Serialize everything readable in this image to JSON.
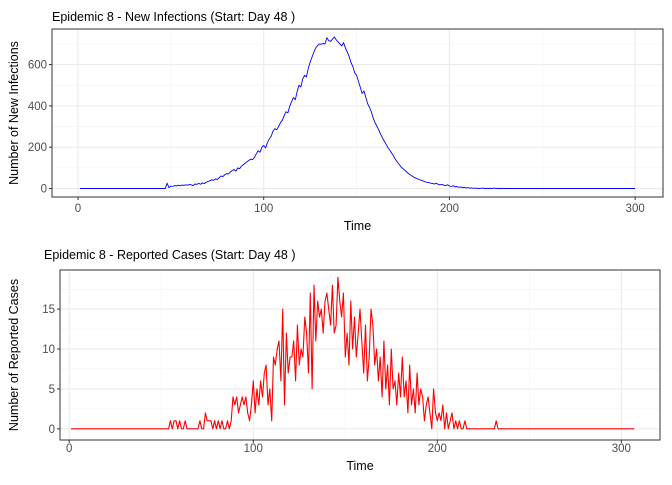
{
  "chart_data": [
    {
      "type": "line",
      "title": "Epidemic 8 - New Infections (Start: Day 48 )",
      "xlabel": "Time",
      "ylabel": "Number of New Infections",
      "xlim": [
        -14,
        315
      ],
      "ylim": [
        -41,
        772
      ],
      "xticks": [
        0,
        100,
        200,
        300
      ],
      "yticks": [
        0,
        200,
        400,
        600
      ],
      "grid": true,
      "color": "#0000ff",
      "x_start": 1,
      "values": [
        0,
        0,
        0,
        0,
        0,
        0,
        0,
        0,
        0,
        0,
        0,
        0,
        0,
        0,
        0,
        0,
        0,
        0,
        0,
        0,
        0,
        0,
        0,
        0,
        0,
        0,
        0,
        0,
        0,
        0,
        0,
        0,
        0,
        0,
        0,
        0,
        0,
        0,
        0,
        0,
        0,
        0,
        0,
        0,
        0,
        0,
        0,
        26,
        4,
        12,
        10,
        14,
        12,
        16,
        13,
        17,
        15,
        18,
        16,
        19,
        18,
        14,
        22,
        20,
        25,
        21,
        27,
        24,
        30,
        34,
        38,
        42,
        40,
        46,
        44,
        52,
        60,
        58,
        66,
        72,
        70,
        80,
        86,
        92,
        84,
        100,
        96,
        108,
        116,
        122,
        130,
        136,
        142,
        140,
        150,
        168,
        182,
        176,
        200,
        208,
        196,
        222,
        240,
        252,
        278,
        290,
        284,
        300,
        318,
        330,
        352,
        372,
        366,
        398,
        420,
        440,
        430,
        468,
        500,
        492,
        530,
        548,
        540,
        582,
        610,
        636,
        660,
        680,
        692,
        700,
        698,
        702,
        700,
        730,
        716,
        712,
        722,
        734,
        720,
        710,
        700,
        690,
        706,
        680,
        660,
        640,
        610,
        590,
        560,
        548,
        520,
        490,
        460,
        472,
        440,
        410,
        392,
        370,
        340,
        318,
        300,
        282,
        262,
        244,
        228,
        212,
        196,
        184,
        170,
        156,
        140,
        128,
        116,
        104,
        96,
        88,
        80,
        72,
        66,
        60,
        54,
        50,
        46,
        42,
        40,
        36,
        32,
        30,
        28,
        26,
        24,
        22,
        26,
        20,
        18,
        20,
        16,
        14,
        18,
        12,
        10,
        14,
        8,
        10,
        6,
        8,
        4,
        6,
        3,
        4,
        2,
        3,
        1,
        2,
        1,
        0,
        1,
        2,
        0,
        1,
        0,
        1,
        0,
        2,
        0,
        1,
        0,
        0,
        1,
        0,
        0,
        0,
        0,
        0,
        0,
        0,
        0,
        0,
        0,
        0,
        0,
        0,
        0,
        0,
        0,
        0,
        0,
        0,
        0,
        0,
        0,
        0,
        0,
        0,
        0,
        0,
        0,
        0,
        0,
        0,
        0,
        0,
        0,
        0,
        0,
        0,
        0,
        0,
        0,
        0,
        0,
        0,
        0,
        0,
        0,
        0,
        0,
        0,
        0,
        0,
        0,
        0,
        0,
        0,
        0,
        0,
        0,
        0,
        0,
        0,
        0,
        0,
        0,
        0,
        0,
        0,
        0,
        0,
        0,
        0
      ]
    },
    {
      "type": "line",
      "title": "Epidemic 8 - Reported Cases (Start: Day 48 )",
      "xlabel": "Time",
      "ylabel": "Number of Reported Cases",
      "xlim": [
        -5,
        321
      ],
      "ylim": [
        -1.4,
        19.9
      ],
      "xticks": [
        0,
        100,
        200,
        300
      ],
      "yticks": [
        0,
        5,
        10,
        15
      ],
      "grid": true,
      "color": "#ff0000",
      "x_start": 1,
      "values": [
        0,
        0,
        0,
        0,
        0,
        0,
        0,
        0,
        0,
        0,
        0,
        0,
        0,
        0,
        0,
        0,
        0,
        0,
        0,
        0,
        0,
        0,
        0,
        0,
        0,
        0,
        0,
        0,
        0,
        0,
        0,
        0,
        0,
        0,
        0,
        0,
        0,
        0,
        0,
        0,
        0,
        0,
        0,
        0,
        0,
        0,
        0,
        0,
        0,
        0,
        0,
        0,
        0,
        0,
        1,
        0,
        1,
        1,
        0,
        1,
        0,
        0,
        1,
        0,
        0,
        0,
        0,
        0,
        0,
        0,
        1,
        0,
        0,
        2,
        1,
        1,
        1,
        0,
        1,
        0,
        1,
        0,
        1,
        0,
        0,
        1,
        0,
        1,
        4,
        3,
        4,
        2,
        3,
        4,
        3,
        4,
        2,
        1,
        3,
        6,
        2,
        5,
        3,
        6,
        4,
        7,
        8,
        3,
        5,
        1,
        9,
        8,
        10,
        11,
        6,
        15,
        3,
        12,
        7,
        9,
        9,
        11,
        6,
        13,
        8,
        10,
        9,
        14,
        12,
        7,
        17,
        5,
        18,
        11,
        16,
        14,
        15,
        12,
        16,
        17,
        15,
        13,
        18,
        12,
        13,
        19,
        16,
        14,
        17,
        9,
        12,
        8,
        16,
        10,
        14,
        9,
        12,
        15,
        11,
        7,
        13,
        6,
        9,
        15,
        13,
        8,
        10,
        6,
        9,
        4,
        11,
        5,
        8,
        3,
        10,
        5,
        6,
        3,
        7,
        4,
        9,
        4,
        6,
        2,
        8,
        3,
        5,
        2,
        7,
        3,
        5,
        4,
        1,
        3,
        4,
        2,
        0,
        5,
        2,
        1,
        2,
        1,
        3,
        0,
        2,
        0,
        1,
        2,
        0,
        1,
        0,
        1,
        0,
        0,
        1,
        0,
        0,
        0,
        0,
        0,
        0,
        0,
        0,
        0,
        0,
        0,
        0,
        0,
        0,
        0,
        0,
        1,
        0,
        0,
        0,
        0,
        0,
        0,
        0,
        0,
        0,
        0,
        0,
        0,
        0,
        0,
        0,
        0,
        0,
        0,
        0,
        0,
        0,
        0,
        0,
        0,
        0,
        0,
        0,
        0,
        0,
        0,
        0,
        0,
        0,
        0,
        0,
        0,
        0,
        0,
        0,
        0,
        0,
        0,
        0,
        0,
        0,
        0,
        0,
        0,
        0,
        0,
        0,
        0,
        0,
        0,
        0,
        0,
        0,
        0,
        0,
        0,
        0,
        0,
        0,
        0,
        0,
        0,
        0,
        0,
        0,
        0,
        0,
        0,
        0,
        0,
        0
      ]
    }
  ]
}
